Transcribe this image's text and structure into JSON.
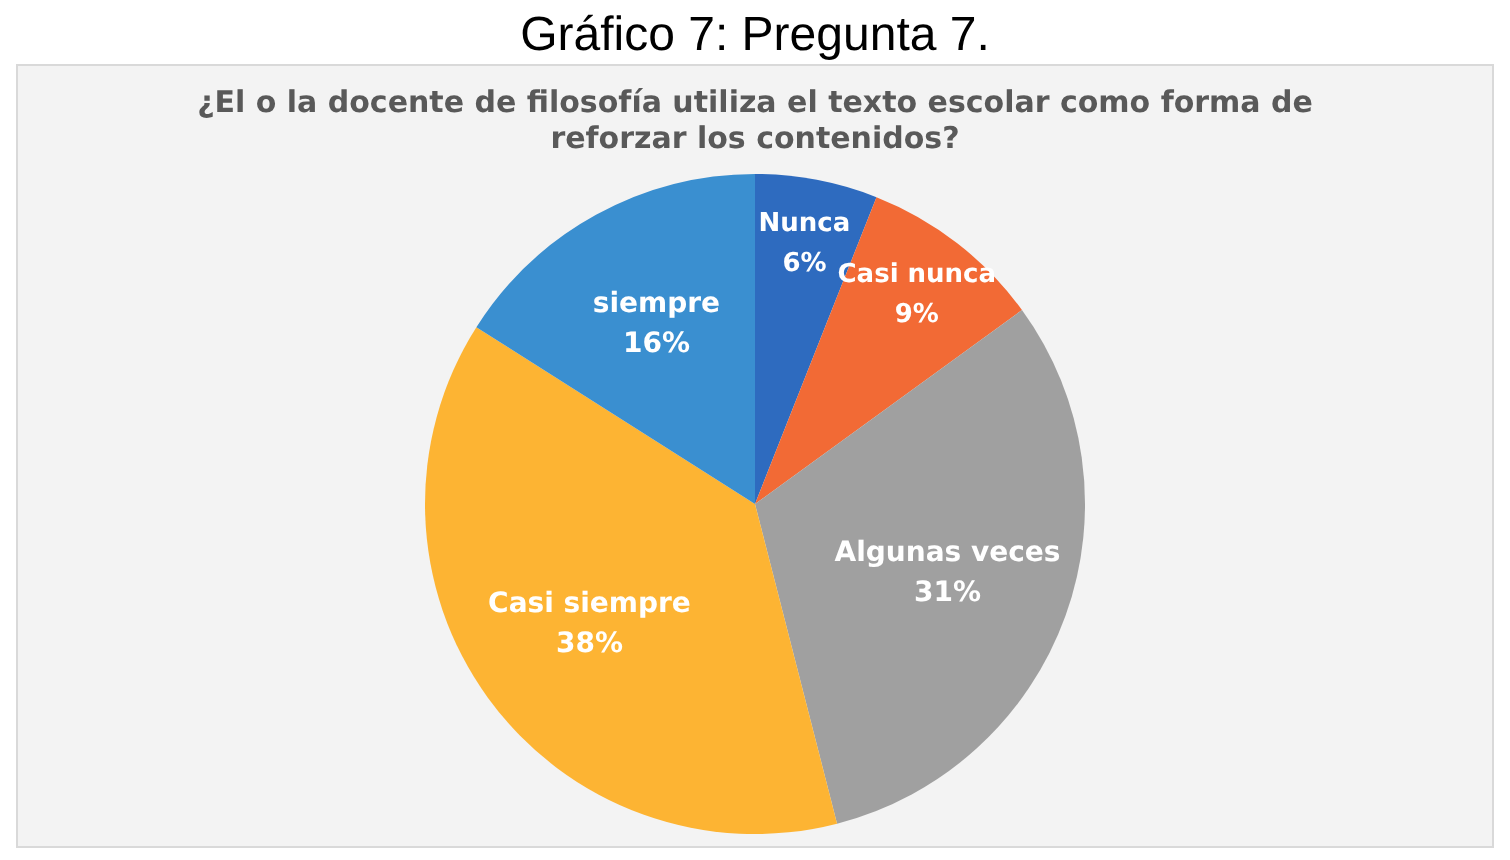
{
  "chart_data": {
    "type": "pie",
    "title": "Gráfico 7: Pregunta 7.",
    "subtitle": "¿El o la docente de filosofía utiliza el texto escolar como forma de reforzar los contenidos?",
    "categories": [
      "Nunca",
      "Casi nunca",
      "Algunas veces",
      "Casi siempre",
      "siempre"
    ],
    "values": [
      6,
      9,
      31,
      38,
      16
    ],
    "colors": [
      "#2e6bbf",
      "#f26a35",
      "#a0a0a0",
      "#fdb433",
      "#3a8fd0"
    ],
    "value_labels": [
      "6%",
      "9%",
      "31%",
      "38%",
      "16%"
    ]
  }
}
